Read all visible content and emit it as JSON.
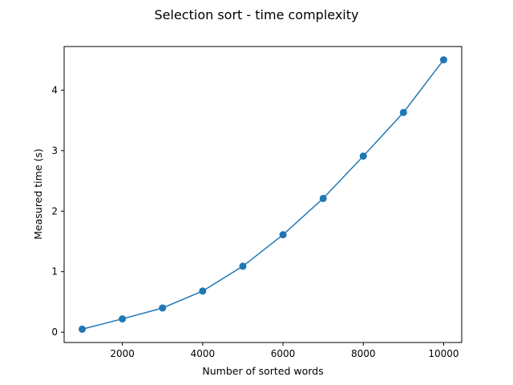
{
  "chart_data": {
    "type": "line",
    "title": "Selection sort - time complexity",
    "xlabel": "Number of sorted words",
    "ylabel": "Measured time (s)",
    "x": [
      1000,
      2000,
      3000,
      4000,
      5000,
      6000,
      7000,
      8000,
      9000,
      10000
    ],
    "series": [
      {
        "values": [
          0.05,
          0.22,
          0.4,
          0.68,
          1.09,
          1.61,
          2.21,
          2.91,
          3.63,
          4.5
        ],
        "color": "#1f77b4",
        "marker": "circle"
      }
    ],
    "xlim": [
      550,
      10450
    ],
    "ylim": [
      -0.17,
      4.72
    ],
    "xticks": [
      2000,
      4000,
      6000,
      8000,
      10000
    ],
    "yticks": [
      0,
      1,
      2,
      3,
      4
    ],
    "grid": false,
    "legend": "none"
  }
}
